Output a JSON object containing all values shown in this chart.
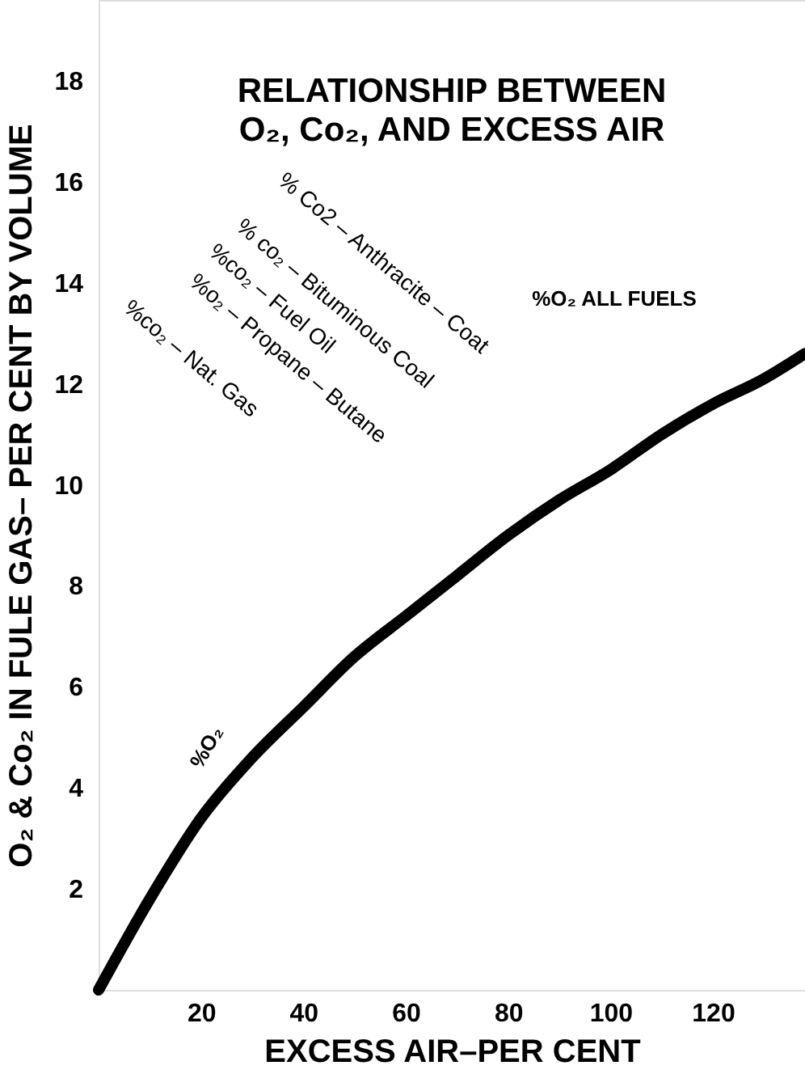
{
  "chart_data": {
    "type": "line",
    "title": [
      "RELATIONSHIP BETWEEN",
      "O₂, Co₂, AND EXCESS AIR"
    ],
    "xlabel": "EXCESS AIR–PER CENT",
    "ylabel": "O₂ & Co₂ IN FULE GAS– PER CENT BY VOLUME",
    "x": [
      0,
      10,
      20,
      30,
      40,
      50,
      60,
      70,
      80,
      90,
      100,
      110,
      120,
      130,
      138
    ],
    "series": [
      {
        "color": "#000000",
        "values": [
          0,
          1.8,
          3.4,
          4.6,
          5.6,
          6.6,
          7.4,
          8.2,
          9.0,
          9.7,
          10.3,
          11.0,
          11.6,
          12.1,
          12.6
        ]
      }
    ],
    "xlim": [
      0,
      138
    ],
    "ylim": [
      0,
      19.6
    ],
    "xticks": [
      20,
      40,
      60,
      80,
      100,
      120
    ],
    "yticks": [
      2,
      4,
      6,
      8,
      10,
      12,
      14,
      16,
      18
    ],
    "grid": false,
    "line_style": "solid",
    "annotations": [
      "%O₂ ALL FUELS",
      "% Co2 – Anthracite – Coat",
      "% co₂ – Bituminous Coal",
      "%co₂ – Fuel Oil",
      "%o₂ – Propane – Butane",
      "%co₂ – Nat. Gas",
      "%O₂"
    ]
  }
}
